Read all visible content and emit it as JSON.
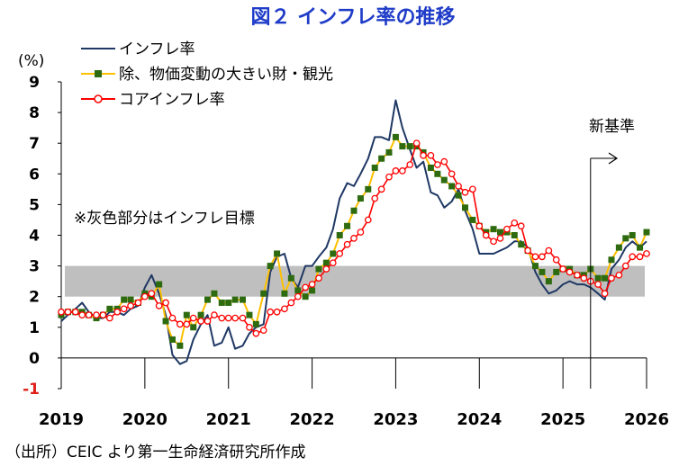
{
  "page": {
    "source": "（出所）CEIC より第一生命経済研究所作成"
  },
  "chart_data": {
    "type": "line",
    "title": "図２ インフレ率の推移",
    "y_unit_label": "(%)",
    "ylim": [
      -1,
      9
    ],
    "yticks": [
      -1,
      0,
      1,
      2,
      3,
      4,
      5,
      6,
      7,
      8,
      9
    ],
    "xlim": [
      2019.0,
      2026.0
    ],
    "xticks": [
      "2019",
      "2020",
      "2021",
      "2022",
      "2023",
      "2024",
      "2025",
      "2026"
    ],
    "band": {
      "from": 2,
      "to": 3,
      "label": "※灰色部分はインフレ目標",
      "color": "#BFBFBF"
    },
    "annotation": {
      "label": "新基準",
      "x": 2025.33
    },
    "colors": {
      "headline": "#1F3864",
      "excl_food": "#FFC000",
      "excl_food_marker": "#2E6B10",
      "core": "#FF0000"
    },
    "series": [
      {
        "name": "インフレ率",
        "style": "line",
        "points": [
          [
            2019.0,
            1.2
          ],
          [
            2019.08,
            1.4
          ],
          [
            2019.17,
            1.6
          ],
          [
            2019.25,
            1.8
          ],
          [
            2019.33,
            1.5
          ],
          [
            2019.42,
            1.3
          ],
          [
            2019.5,
            1.3
          ],
          [
            2019.58,
            1.5
          ],
          [
            2019.67,
            1.5
          ],
          [
            2019.75,
            1.4
          ],
          [
            2019.83,
            1.6
          ],
          [
            2019.92,
            1.7
          ],
          [
            2020.0,
            2.3
          ],
          [
            2020.08,
            2.7
          ],
          [
            2020.17,
            2.1
          ],
          [
            2020.25,
            1.4
          ],
          [
            2020.33,
            0.1
          ],
          [
            2020.42,
            -0.2
          ],
          [
            2020.5,
            -0.1
          ],
          [
            2020.58,
            0.6
          ],
          [
            2020.67,
            1.1
          ],
          [
            2020.75,
            1.4
          ],
          [
            2020.83,
            0.4
          ],
          [
            2020.92,
            0.5
          ],
          [
            2021.0,
            1.0
          ],
          [
            2021.08,
            0.3
          ],
          [
            2021.17,
            0.4
          ],
          [
            2021.25,
            0.8
          ],
          [
            2021.33,
            1.0
          ],
          [
            2021.42,
            1.1
          ],
          [
            2021.5,
            2.8
          ],
          [
            2021.58,
            3.3
          ],
          [
            2021.67,
            3.4
          ],
          [
            2021.75,
            2.6
          ],
          [
            2021.83,
            2.3
          ],
          [
            2021.92,
            3.0
          ],
          [
            2022.0,
            3.0
          ],
          [
            2022.08,
            3.3
          ],
          [
            2022.17,
            3.6
          ],
          [
            2022.25,
            4.2
          ],
          [
            2022.33,
            5.2
          ],
          [
            2022.42,
            5.7
          ],
          [
            2022.5,
            5.6
          ],
          [
            2022.58,
            6.0
          ],
          [
            2022.67,
            6.5
          ],
          [
            2022.75,
            7.2
          ],
          [
            2022.83,
            7.2
          ],
          [
            2022.92,
            7.1
          ],
          [
            2023.0,
            8.4
          ],
          [
            2023.08,
            7.5
          ],
          [
            2023.17,
            6.8
          ],
          [
            2023.25,
            6.2
          ],
          [
            2023.33,
            6.4
          ],
          [
            2023.42,
            5.4
          ],
          [
            2023.5,
            5.3
          ],
          [
            2023.58,
            4.9
          ],
          [
            2023.67,
            5.1
          ],
          [
            2023.75,
            5.5
          ],
          [
            2023.83,
            4.8
          ],
          [
            2023.92,
            4.2
          ],
          [
            2024.0,
            3.4
          ],
          [
            2024.08,
            3.4
          ],
          [
            2024.17,
            3.4
          ],
          [
            2024.25,
            3.5
          ],
          [
            2024.33,
            3.6
          ],
          [
            2024.42,
            3.8
          ],
          [
            2024.5,
            3.8
          ],
          [
            2024.58,
            3.6
          ],
          [
            2024.67,
            2.8
          ],
          [
            2024.75,
            2.4
          ],
          [
            2024.83,
            2.1
          ],
          [
            2024.92,
            2.2
          ],
          [
            2025.0,
            2.4
          ],
          [
            2025.08,
            2.5
          ],
          [
            2025.17,
            2.4
          ],
          [
            2025.25,
            2.4
          ],
          [
            2025.33,
            2.3
          ],
          [
            2025.42,
            2.1
          ],
          [
            2025.5,
            1.9
          ],
          [
            2025.58,
            2.9
          ],
          [
            2025.67,
            3.2
          ],
          [
            2025.75,
            3.6
          ],
          [
            2025.83,
            3.8
          ],
          [
            2025.92,
            3.6
          ],
          [
            2026.0,
            3.8
          ]
        ]
      },
      {
        "name": "除、物価変動の大きい財・観光",
        "style": "line-square",
        "points": [
          [
            2019.0,
            1.4
          ],
          [
            2019.08,
            1.5
          ],
          [
            2019.17,
            1.5
          ],
          [
            2019.25,
            1.5
          ],
          [
            2019.33,
            1.4
          ],
          [
            2019.42,
            1.3
          ],
          [
            2019.5,
            1.4
          ],
          [
            2019.58,
            1.6
          ],
          [
            2019.67,
            1.6
          ],
          [
            2019.75,
            1.9
          ],
          [
            2019.83,
            1.9
          ],
          [
            2019.92,
            1.8
          ],
          [
            2020.0,
            2.1
          ],
          [
            2020.08,
            2.0
          ],
          [
            2020.17,
            2.4
          ],
          [
            2020.25,
            1.2
          ],
          [
            2020.33,
            0.6
          ],
          [
            2020.42,
            0.4
          ],
          [
            2020.5,
            1.4
          ],
          [
            2020.58,
            1.0
          ],
          [
            2020.67,
            1.4
          ],
          [
            2020.75,
            1.9
          ],
          [
            2020.83,
            2.1
          ],
          [
            2020.92,
            1.8
          ],
          [
            2021.0,
            1.8
          ],
          [
            2021.08,
            1.9
          ],
          [
            2021.17,
            1.9
          ],
          [
            2021.25,
            1.4
          ],
          [
            2021.33,
            1.1
          ],
          [
            2021.42,
            2.1
          ],
          [
            2021.5,
            3.0
          ],
          [
            2021.58,
            3.4
          ],
          [
            2021.67,
            2.1
          ],
          [
            2021.75,
            2.6
          ],
          [
            2021.83,
            2.2
          ],
          [
            2021.92,
            2.0
          ],
          [
            2022.0,
            2.2
          ],
          [
            2022.08,
            2.9
          ],
          [
            2022.17,
            3.1
          ],
          [
            2022.25,
            3.4
          ],
          [
            2022.33,
            4.0
          ],
          [
            2022.42,
            4.3
          ],
          [
            2022.5,
            4.8
          ],
          [
            2022.58,
            5.2
          ],
          [
            2022.67,
            5.5
          ],
          [
            2022.75,
            6.2
          ],
          [
            2022.83,
            6.5
          ],
          [
            2022.92,
            6.7
          ],
          [
            2023.0,
            7.2
          ],
          [
            2023.08,
            6.9
          ],
          [
            2023.17,
            6.9
          ],
          [
            2023.25,
            6.9
          ],
          [
            2023.33,
            6.7
          ],
          [
            2023.42,
            6.2
          ],
          [
            2023.5,
            6.0
          ],
          [
            2023.58,
            5.8
          ],
          [
            2023.67,
            5.6
          ],
          [
            2023.75,
            5.3
          ],
          [
            2023.83,
            4.9
          ],
          [
            2023.92,
            4.5
          ],
          [
            2024.0,
            4.3
          ],
          [
            2024.08,
            4.1
          ],
          [
            2024.17,
            4.2
          ],
          [
            2024.25,
            4.1
          ],
          [
            2024.33,
            4.1
          ],
          [
            2024.42,
            4.0
          ],
          [
            2024.5,
            3.7
          ],
          [
            2024.58,
            3.5
          ],
          [
            2024.67,
            3.0
          ],
          [
            2024.75,
            2.8
          ],
          [
            2024.83,
            2.5
          ],
          [
            2024.92,
            2.8
          ],
          [
            2025.0,
            2.9
          ],
          [
            2025.08,
            2.9
          ],
          [
            2025.17,
            2.7
          ],
          [
            2025.25,
            2.7
          ],
          [
            2025.33,
            2.9
          ],
          [
            2025.42,
            2.6
          ],
          [
            2025.5,
            2.6
          ],
          [
            2025.58,
            3.2
          ],
          [
            2025.67,
            3.6
          ],
          [
            2025.75,
            3.9
          ],
          [
            2025.83,
            4.0
          ],
          [
            2025.92,
            3.6
          ],
          [
            2026.0,
            4.1
          ]
        ]
      },
      {
        "name": "コアインフレ率",
        "style": "line-circle",
        "points": [
          [
            2019.0,
            1.5
          ],
          [
            2019.08,
            1.5
          ],
          [
            2019.17,
            1.5
          ],
          [
            2019.25,
            1.4
          ],
          [
            2019.33,
            1.4
          ],
          [
            2019.42,
            1.4
          ],
          [
            2019.5,
            1.4
          ],
          [
            2019.58,
            1.3
          ],
          [
            2019.67,
            1.5
          ],
          [
            2019.75,
            1.6
          ],
          [
            2019.83,
            1.7
          ],
          [
            2019.92,
            1.8
          ],
          [
            2020.0,
            2.0
          ],
          [
            2020.08,
            2.1
          ],
          [
            2020.17,
            1.7
          ],
          [
            2020.25,
            1.8
          ],
          [
            2020.33,
            1.3
          ],
          [
            2020.42,
            1.1
          ],
          [
            2020.5,
            1.1
          ],
          [
            2020.58,
            1.3
          ],
          [
            2020.67,
            1.2
          ],
          [
            2020.75,
            1.2
          ],
          [
            2020.83,
            1.4
          ],
          [
            2020.92,
            1.3
          ],
          [
            2021.0,
            1.3
          ],
          [
            2021.08,
            1.3
          ],
          [
            2021.17,
            1.3
          ],
          [
            2021.25,
            1.0
          ],
          [
            2021.33,
            0.8
          ],
          [
            2021.42,
            0.9
          ],
          [
            2021.5,
            1.5
          ],
          [
            2021.58,
            1.5
          ],
          [
            2021.67,
            1.6
          ],
          [
            2021.75,
            1.8
          ],
          [
            2021.83,
            2.0
          ],
          [
            2021.92,
            2.3
          ],
          [
            2022.0,
            2.4
          ],
          [
            2022.08,
            2.6
          ],
          [
            2022.17,
            2.9
          ],
          [
            2022.25,
            3.1
          ],
          [
            2022.33,
            3.4
          ],
          [
            2022.42,
            3.7
          ],
          [
            2022.5,
            3.9
          ],
          [
            2022.58,
            4.1
          ],
          [
            2022.67,
            4.5
          ],
          [
            2022.75,
            5.2
          ],
          [
            2022.83,
            5.5
          ],
          [
            2022.92,
            5.9
          ],
          [
            2023.0,
            6.1
          ],
          [
            2023.08,
            6.1
          ],
          [
            2023.17,
            6.3
          ],
          [
            2023.25,
            7.0
          ],
          [
            2023.33,
            6.6
          ],
          [
            2023.42,
            6.6
          ],
          [
            2023.5,
            6.3
          ],
          [
            2023.58,
            6.4
          ],
          [
            2023.67,
            6.0
          ],
          [
            2023.75,
            5.6
          ],
          [
            2023.83,
            5.4
          ],
          [
            2023.92,
            5.5
          ],
          [
            2024.0,
            4.3
          ],
          [
            2024.08,
            4.0
          ],
          [
            2024.17,
            3.8
          ],
          [
            2024.25,
            3.9
          ],
          [
            2024.33,
            4.2
          ],
          [
            2024.42,
            4.4
          ],
          [
            2024.5,
            4.3
          ],
          [
            2024.58,
            3.5
          ],
          [
            2024.67,
            3.3
          ],
          [
            2024.75,
            3.3
          ],
          [
            2024.83,
            3.5
          ],
          [
            2024.92,
            3.2
          ],
          [
            2025.0,
            2.9
          ],
          [
            2025.08,
            2.8
          ],
          [
            2025.17,
            2.7
          ],
          [
            2025.25,
            2.6
          ],
          [
            2025.33,
            2.5
          ],
          [
            2025.42,
            2.4
          ],
          [
            2025.5,
            2.1
          ],
          [
            2025.58,
            2.6
          ],
          [
            2025.67,
            2.7
          ],
          [
            2025.75,
            3.0
          ],
          [
            2025.83,
            3.3
          ],
          [
            2025.92,
            3.3
          ],
          [
            2026.0,
            3.4
          ]
        ]
      }
    ]
  }
}
